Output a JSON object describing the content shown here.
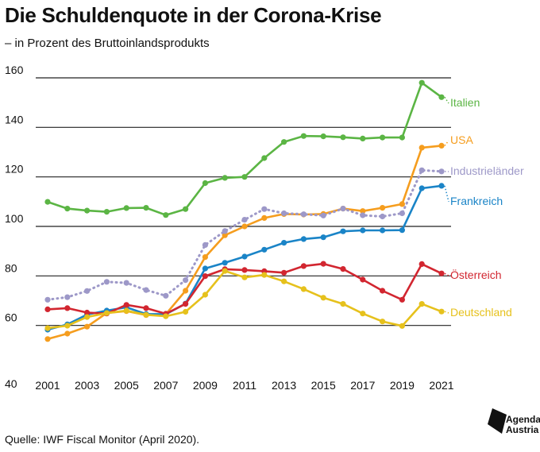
{
  "title": "Die Schuldenquote in der Corona-Krise",
  "subtitle": "– in Prozent des Bruttoinlandsprodukts",
  "source": "Quelle: IWF Fiscal Monitor (April 2020).",
  "logo": {
    "line1": "Agenda",
    "line2": "Austria"
  },
  "chart_data": {
    "type": "line",
    "title": "Die Schuldenquote in der Corona-Krise",
    "subtitle": "– in Prozent des Bruttoinlandsprodukts",
    "xlabel": "",
    "ylabel": "",
    "x": [
      2001,
      2002,
      2003,
      2004,
      2005,
      2006,
      2007,
      2008,
      2009,
      2010,
      2011,
      2012,
      2013,
      2014,
      2015,
      2016,
      2017,
      2018,
      2019,
      2020,
      2021
    ],
    "x_tick_labels": [
      "2001",
      "2003",
      "2005",
      "2007",
      "2009",
      "2011",
      "2013",
      "2015",
      "2017",
      "2019",
      "2021"
    ],
    "ylim": [
      40,
      160
    ],
    "y_ticks": [
      40,
      60,
      80,
      100,
      120,
      140,
      160
    ],
    "grid": "horizontal",
    "legend": "labels at line ends",
    "series": [
      {
        "name": "Italien",
        "color": "#5bb544",
        "style": "solid",
        "values": [
          109.9,
          107.2,
          106.4,
          105.9,
          107.4,
          107.5,
          104.6,
          107.0,
          117.5,
          119.6,
          120.0,
          127.6,
          134.1,
          136.5,
          136.4,
          136.0,
          135.5,
          135.9,
          135.9,
          158.0,
          152.2
        ]
      },
      {
        "name": "USA",
        "color": "#f59d1e",
        "style": "solid",
        "values": [
          54.5,
          56.7,
          59.5,
          65.0,
          65.8,
          64.2,
          64.5,
          74.0,
          87.6,
          96.4,
          100.0,
          103.4,
          105.0,
          104.8,
          105.0,
          107.2,
          106.2,
          107.5,
          109.0,
          131.8,
          132.6
        ]
      },
      {
        "name": "Industrieländer",
        "color": "#9d98c8",
        "style": "dotted",
        "values": [
          70.4,
          71.4,
          73.9,
          77.6,
          77.2,
          74.3,
          72.0,
          78.3,
          92.5,
          98.1,
          102.7,
          107.0,
          105.3,
          104.9,
          104.4,
          107.2,
          104.5,
          104.0,
          105.3,
          122.7,
          122.2
        ]
      },
      {
        "name": "Frankreich",
        "color": "#1a84c7",
        "style": "solid",
        "values": [
          58.3,
          60.4,
          64.4,
          66.0,
          67.3,
          64.6,
          64.5,
          68.8,
          83.0,
          85.3,
          87.8,
          90.6,
          93.4,
          94.9,
          95.6,
          98.0,
          98.4,
          98.4,
          98.5,
          115.4,
          116.4
        ]
      },
      {
        "name": "Österreich",
        "color": "#d22630",
        "style": "solid",
        "values": [
          66.5,
          67.0,
          65.2,
          64.8,
          68.3,
          67.0,
          64.7,
          68.7,
          79.9,
          82.7,
          82.4,
          81.9,
          81.3,
          84.0,
          84.9,
          82.8,
          78.5,
          74.0,
          70.4,
          84.8,
          81.0
        ]
      },
      {
        "name": "Deutschland",
        "color": "#e6c11c",
        "style": "solid",
        "values": [
          58.9,
          59.9,
          63.4,
          65.0,
          66.0,
          64.3,
          63.7,
          65.5,
          72.4,
          82.0,
          79.4,
          80.4,
          77.8,
          74.7,
          71.2,
          68.7,
          64.8,
          61.6,
          59.8,
          68.7,
          65.6
        ]
      }
    ]
  }
}
